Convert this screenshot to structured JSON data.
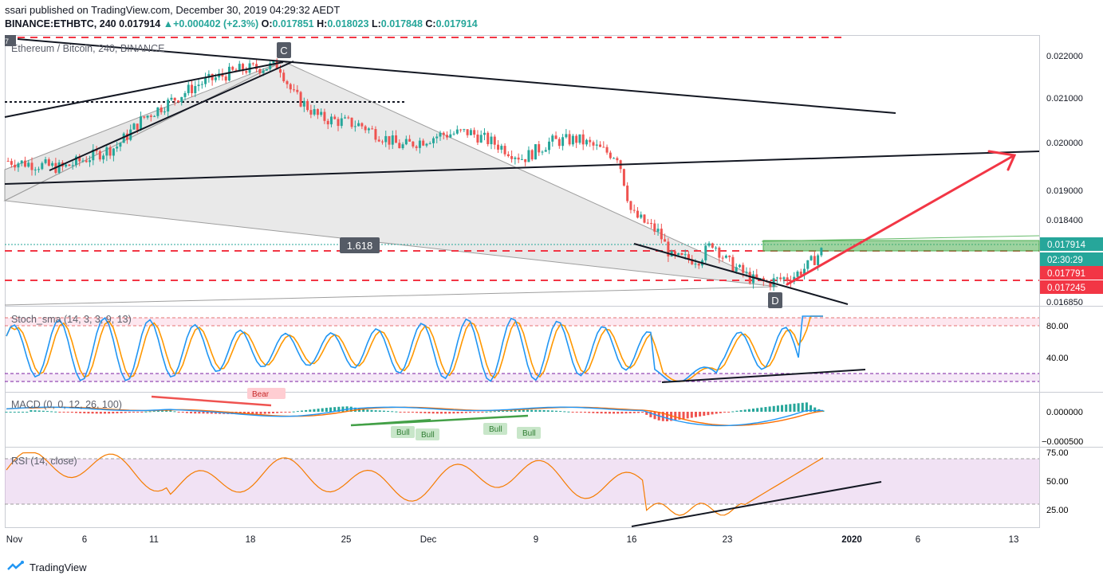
{
  "header": {
    "publisher_line": "ssari published on TradingView.com, December 30, 2019 04:29:32 AEDT",
    "symbol": "BINANCE:ETHBTC, 240",
    "last": "0.017914",
    "change": "+0.000402 (+2.3%)",
    "o_label": "O:",
    "o_value": "0.017851",
    "h_label": "H:",
    "h_value": "0.018023",
    "l_label": "L:",
    "l_value": "0.017848",
    "c_label": "C:",
    "c_value": "0.017914"
  },
  "footer": {
    "brand": "TradingView"
  },
  "chart_data": {
    "type": "line",
    "series_label": "Ethereum / Bitcoin, 240, BINANCE",
    "x_ticks": [
      "Nov",
      "6",
      "11",
      "18",
      "25",
      "Dec",
      "9",
      "16",
      "23",
      "2020",
      "6",
      "13"
    ],
    "price_axis": [
      0.022,
      0.021,
      0.02,
      0.019,
      0.0184,
      0.01685
    ],
    "price_axis_labels": [
      "0.022000",
      "0.021000",
      "0.020000",
      "0.019000",
      "0.018400",
      "0.016850"
    ],
    "price_badges": [
      {
        "label": "0.017914",
        "color": "#26a69a"
      },
      {
        "label": "02:30:29",
        "color": "#26a69a"
      },
      {
        "label": "0.017791",
        "color": "#f23645"
      },
      {
        "label": "0.017245",
        "color": "#f23645"
      }
    ],
    "price_path": [
      [
        0,
        0.0198
      ],
      [
        4,
        0.01965
      ],
      [
        8,
        0.0201
      ],
      [
        10,
        0.0207
      ],
      [
        14,
        0.0214
      ],
      [
        17,
        0.0217
      ],
      [
        20,
        0.0218
      ],
      [
        21,
        0.0212
      ],
      [
        23,
        0.0207
      ],
      [
        26,
        0.02055
      ],
      [
        29,
        0.0201
      ],
      [
        32,
        0.02035
      ],
      [
        34,
        0.0204
      ],
      [
        36,
        0.02015
      ],
      [
        38,
        0.01985
      ],
      [
        40,
        0.0202
      ],
      [
        42,
        0.02025
      ],
      [
        44,
        0.02
      ],
      [
        45,
        0.0199
      ],
      [
        46,
        0.0187
      ],
      [
        48,
        0.0183
      ],
      [
        49,
        0.01775
      ],
      [
        51,
        0.01775
      ],
      [
        52,
        0.0181
      ],
      [
        53,
        0.0177
      ],
      [
        55,
        0.0173
      ],
      [
        56,
        0.01725
      ],
      [
        58,
        0.0174
      ],
      [
        59,
        0.0176
      ],
      [
        60,
        0.01791
      ]
    ],
    "annotations": {
      "pattern_points": [
        "C",
        "D"
      ],
      "fib_label": "1.618",
      "bear_label": "Bear",
      "bull_labels": [
        "Bull",
        "Bull",
        "Bull",
        "Bull"
      ]
    },
    "indicators": [
      {
        "name": "Stoch_sma (14, 3, 3, 9, 13)",
        "axis": [
          80,
          40
        ],
        "axis_labels": [
          "80.00",
          "40.00"
        ],
        "bands": [
          20,
          80
        ]
      },
      {
        "name": "MACD (0, 0, 12, 26, 100)",
        "axis": [
          0,
          -0.0005
        ],
        "axis_labels": [
          "0.000000",
          "−0.000500"
        ]
      },
      {
        "name": "RSI (14, close)",
        "axis": [
          75,
          50,
          25
        ],
        "axis_labels": [
          "75.00",
          "50.00",
          "25.00"
        ],
        "bands": [
          30,
          70
        ]
      }
    ],
    "colors": {
      "up": "#26a69a",
      "down": "#ef5350",
      "rsi": "#f57c00",
      "stoch_k": "#2196f3",
      "stoch_d": "#ff9800",
      "macd": "#2196f3",
      "signal": "#ff6d00"
    },
    "grid": false,
    "legend": "top-left"
  }
}
